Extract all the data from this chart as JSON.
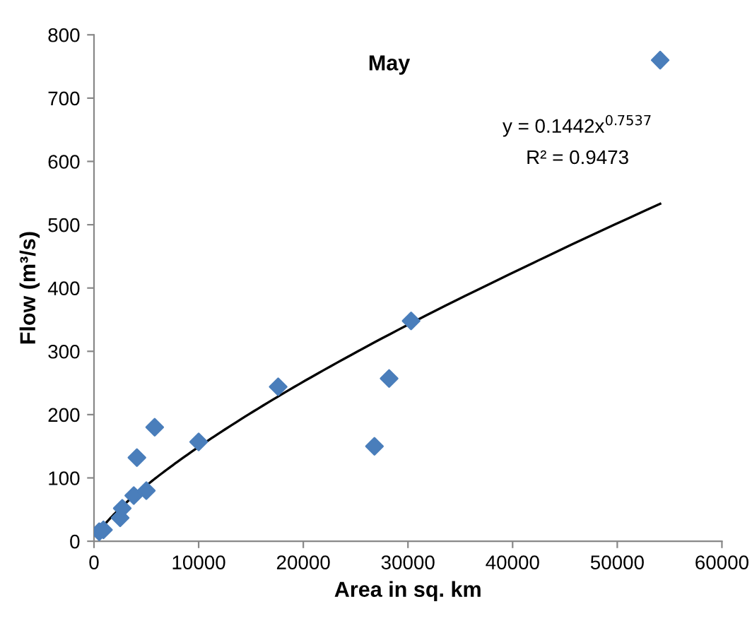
{
  "chart_data": {
    "type": "scatter",
    "title": "May",
    "xlabel": "Area in sq. km",
    "ylabel": "Flow (m³/s)",
    "xlim": [
      0,
      60000
    ],
    "xticks": [
      0,
      10000,
      20000,
      30000,
      40000,
      50000,
      60000
    ],
    "ylim": [
      0,
      800
    ],
    "yticks": [
      0,
      100,
      200,
      300,
      400,
      500,
      600,
      700,
      800
    ],
    "grid": false,
    "annotations": [
      "y = 0.1442x$^{0.7537}$",
      "R² = 0.9473"
    ],
    "series": [
      {
        "marker": "diamond",
        "color": "#4a7ebb",
        "x": [
          500,
          900,
          2500,
          2700,
          3800,
          4100,
          5000,
          5800,
          10000,
          17600,
          26800,
          28200,
          30300,
          54100
        ],
        "values": [
          15,
          18,
          37,
          52,
          72,
          132,
          80,
          180,
          157,
          244,
          150,
          257,
          348,
          760
        ]
      },
      {
        "type": "line",
        "marker": "none",
        "color": "#000000",
        "x": [
          200,
          1000,
          2500,
          5000,
          10000,
          20000,
          30000,
          40000,
          54100
        ],
        "values": [
          8,
          26,
          52,
          88,
          149,
          252,
          342,
          424,
          533
        ]
      }
    ]
  }
}
